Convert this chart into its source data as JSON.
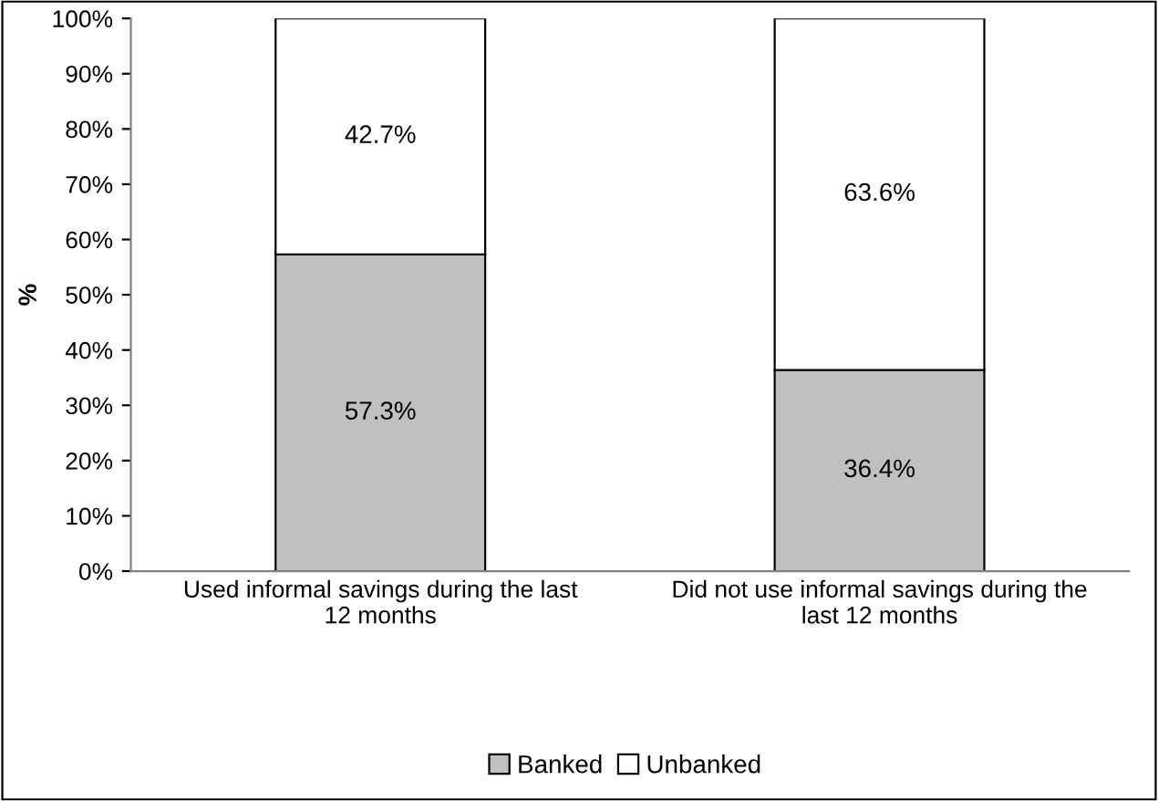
{
  "chart_data": {
    "type": "bar",
    "stacked": true,
    "ylabel": "%",
    "categories": [
      "Used informal savings during the last\n12 months",
      "Did not use informal savings during the\nlast 12 months"
    ],
    "series": [
      {
        "name": "Banked",
        "color": "#c0c0c0",
        "values": [
          57.3,
          36.4
        ],
        "value_labels": [
          "57.3%",
          "36.4%"
        ]
      },
      {
        "name": "Unbanked",
        "color": "#ffffff",
        "values": [
          42.7,
          63.6
        ],
        "value_labels": [
          "42.7%",
          "63.6%"
        ]
      }
    ],
    "ylim": [
      0,
      100
    ],
    "yticks": [
      {
        "value": 0,
        "label": "0%"
      },
      {
        "value": 10,
        "label": "10%"
      },
      {
        "value": 20,
        "label": "20%"
      },
      {
        "value": 30,
        "label": "30%"
      },
      {
        "value": 40,
        "label": "40%"
      },
      {
        "value": 50,
        "label": "50%"
      },
      {
        "value": 60,
        "label": "60%"
      },
      {
        "value": 70,
        "label": "70%"
      },
      {
        "value": 80,
        "label": "80%"
      },
      {
        "value": 90,
        "label": "90%"
      },
      {
        "value": 100,
        "label": "100%"
      }
    ],
    "grid": false,
    "legend": "bottom"
  }
}
